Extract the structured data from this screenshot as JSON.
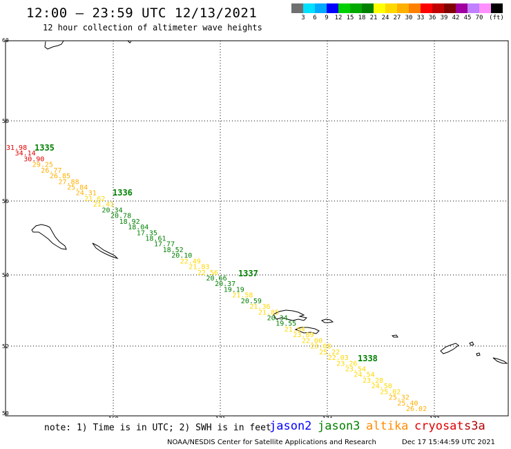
{
  "header": {
    "title": "12:00 – 23:59 UTC 12/13/2021",
    "subtitle": "12 hour collection of altimeter wave heights"
  },
  "colorbar": {
    "colors": [
      "#707070",
      "#00e0ff",
      "#00a8ff",
      "#0000ff",
      "#00d000",
      "#00a800",
      "#008000",
      "#ffff00",
      "#ffd800",
      "#ffb000",
      "#ff8000",
      "#ff0000",
      "#c00000",
      "#800000",
      "#a000a0",
      "#c080ff",
      "#ff90ff",
      "#000000"
    ],
    "labels": [
      "3",
      "6",
      "9",
      "12",
      "15",
      "18",
      "21",
      "24",
      "27",
      "30",
      "33",
      "36",
      "39",
      "42",
      "45",
      "70",
      "(ft)"
    ]
  },
  "axes": {
    "lat_labels": [
      "60",
      "58",
      "56",
      "54",
      "52",
      "50"
    ],
    "lon_labels": [
      "165",
      "168",
      "171",
      "174",
      "177"
    ]
  },
  "passes": [
    "1335",
    "1336",
    "1337",
    "1338"
  ],
  "wave_heights": [
    {
      "value": "31.98",
      "color": "#e00000"
    },
    {
      "value": "34.14",
      "color": "#e00000"
    },
    {
      "value": "30.90",
      "color": "#e00000"
    },
    {
      "value": "29.25",
      "color": "#ffb000"
    },
    {
      "value": "26.77",
      "color": "#ffb000"
    },
    {
      "value": "26.85",
      "color": "#ffb000"
    },
    {
      "value": "27.88",
      "color": "#ffb000"
    },
    {
      "value": "25.84",
      "color": "#ffb000"
    },
    {
      "value": "24.31",
      "color": "#ffb000"
    },
    {
      "value": "21.62",
      "color": "#ffd800"
    },
    {
      "value": "21.41",
      "color": "#ffd800"
    },
    {
      "value": "20.34",
      "color": "#008000"
    },
    {
      "value": "20.78",
      "color": "#008000"
    },
    {
      "value": "18.92",
      "color": "#008000"
    },
    {
      "value": "18.04",
      "color": "#008000"
    },
    {
      "value": "17.35",
      "color": "#008000"
    },
    {
      "value": "18.61",
      "color": "#008000"
    },
    {
      "value": "17.77",
      "color": "#008000"
    },
    {
      "value": "18.52",
      "color": "#008000"
    },
    {
      "value": "20.10",
      "color": "#008000"
    },
    {
      "value": "22.49",
      "color": "#ffd800"
    },
    {
      "value": "21.83",
      "color": "#ffd800"
    },
    {
      "value": "22.56",
      "color": "#ffd800"
    },
    {
      "value": "20.66",
      "color": "#008000"
    },
    {
      "value": "20.37",
      "color": "#008000"
    },
    {
      "value": "19.19",
      "color": "#008000"
    },
    {
      "value": "21.58",
      "color": "#ffd800"
    },
    {
      "value": "20.59",
      "color": "#008000"
    },
    {
      "value": "21.36",
      "color": "#ffd800"
    },
    {
      "value": "21.85",
      "color": "#ffd800"
    },
    {
      "value": "20.34",
      "color": "#008000"
    },
    {
      "value": "19.55",
      "color": "#008000"
    },
    {
      "value": "21.64",
      "color": "#ffd800"
    },
    {
      "value": "23.89",
      "color": "#ffd800"
    },
    {
      "value": "22.00",
      "color": "#ffd800"
    },
    {
      "value": "23.08",
      "color": "#ffd800"
    },
    {
      "value": "25.22",
      "color": "#ffd800"
    },
    {
      "value": "22.03",
      "color": "#ffd800"
    },
    {
      "value": "23.26",
      "color": "#ffd800"
    },
    {
      "value": "23.54",
      "color": "#ffd800"
    },
    {
      "value": "24.54",
      "color": "#ffd800"
    },
    {
      "value": "23.28",
      "color": "#ffd800"
    },
    {
      "value": "24.50",
      "color": "#ffd800"
    },
    {
      "value": "25.02",
      "color": "#ffd800"
    },
    {
      "value": "25.32",
      "color": "#ffb000"
    },
    {
      "value": "25.40",
      "color": "#ffb000"
    },
    {
      "value": "26.02",
      "color": "#ffb000"
    }
  ],
  "footer": {
    "note": "note: 1) Time is in UTC; 2) SWH is in feet",
    "legend": [
      {
        "name": "jason2",
        "color": "#0000ff"
      },
      {
        "name": "jason3",
        "color": "#008000"
      },
      {
        "name": "altika",
        "color": "#ff8c00"
      },
      {
        "name": "cryosat",
        "color": "#e00000"
      },
      {
        "name": "s3a",
        "color": "#b00000"
      }
    ],
    "credit": "NOAA/NESDIS Center for Satellite Applications and Research",
    "timestamp": "Dec 17 15:44:59 UTC 2021"
  }
}
